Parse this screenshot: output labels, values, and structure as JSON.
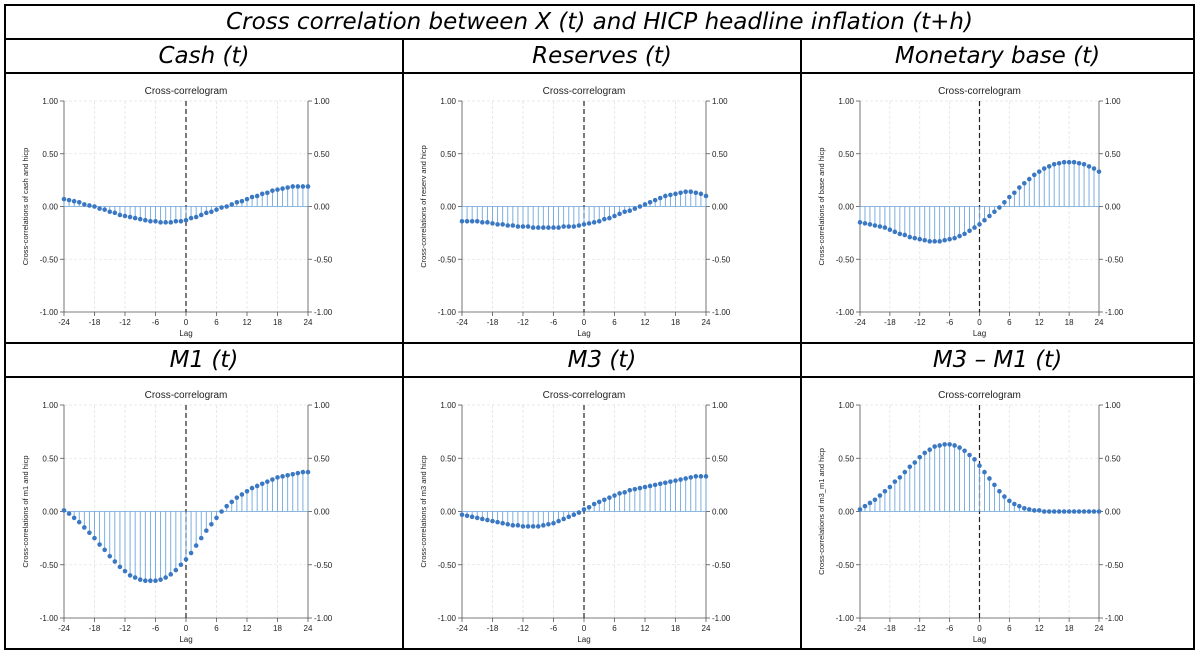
{
  "main_title": "Cross correlation between X (t) and HICP headline inflation (t+h)",
  "panels": [
    {
      "title": "Cash (t)"
    },
    {
      "title": "Reserves (t)"
    },
    {
      "title": "Monetary base (t)"
    },
    {
      "title": "M1 (t)"
    },
    {
      "title": "M3 (t)"
    },
    {
      "title": "M3 – M1 (t)"
    }
  ],
  "colors": {
    "marker": "#3a78c3",
    "stem": "#6fa6dc",
    "grid": "#e3e3e3",
    "axis": "#555555",
    "zero_line": "#222222"
  },
  "chart_data": [
    {
      "type": "scatter",
      "title": "Cross-correlogram",
      "xlabel": "Lag",
      "ylabel": "Cross-correlations of cash and hicp",
      "x_ticks": [
        "-24",
        "-18",
        "-12",
        "-6",
        "0",
        "6",
        "12",
        "18",
        "24"
      ],
      "y_ticks": [
        "-1.00",
        "-0.50",
        "0.00",
        "0.50",
        "1.00"
      ],
      "xlim": [
        -24,
        24
      ],
      "ylim": [
        -1,
        1
      ],
      "reference_line_x": 0,
      "x": [
        -24,
        -23,
        -22,
        -21,
        -20,
        -19,
        -18,
        -17,
        -16,
        -15,
        -14,
        -13,
        -12,
        -11,
        -10,
        -9,
        -8,
        -7,
        -6,
        -5,
        -4,
        -3,
        -2,
        -1,
        0,
        1,
        2,
        3,
        4,
        5,
        6,
        7,
        8,
        9,
        10,
        11,
        12,
        13,
        14,
        15,
        16,
        17,
        18,
        19,
        20,
        21,
        22,
        23,
        24
      ],
      "values": [
        0.07,
        0.06,
        0.05,
        0.04,
        0.02,
        0.01,
        0.0,
        -0.02,
        -0.03,
        -0.05,
        -0.06,
        -0.08,
        -0.09,
        -0.1,
        -0.11,
        -0.12,
        -0.13,
        -0.14,
        -0.14,
        -0.15,
        -0.15,
        -0.15,
        -0.14,
        -0.14,
        -0.13,
        -0.11,
        -0.1,
        -0.08,
        -0.06,
        -0.05,
        -0.03,
        -0.01,
        0.0,
        0.02,
        0.04,
        0.05,
        0.07,
        0.09,
        0.1,
        0.12,
        0.13,
        0.15,
        0.16,
        0.17,
        0.18,
        0.19,
        0.19,
        0.19,
        0.19
      ]
    },
    {
      "type": "scatter",
      "title": "Cross-correlogram",
      "xlabel": "Lag",
      "ylabel": "Cross-correlations of reserv and hicp",
      "x_ticks": [
        "-24",
        "-18",
        "-12",
        "-6",
        "0",
        "6",
        "12",
        "18",
        "24"
      ],
      "y_ticks": [
        "-1.00",
        "-0.50",
        "0.00",
        "0.50",
        "1.00"
      ],
      "xlim": [
        -24,
        24
      ],
      "ylim": [
        -1,
        1
      ],
      "reference_line_x": 0,
      "x": [
        -24,
        -23,
        -22,
        -21,
        -20,
        -19,
        -18,
        -17,
        -16,
        -15,
        -14,
        -13,
        -12,
        -11,
        -10,
        -9,
        -8,
        -7,
        -6,
        -5,
        -4,
        -3,
        -2,
        -1,
        0,
        1,
        2,
        3,
        4,
        5,
        6,
        7,
        8,
        9,
        10,
        11,
        12,
        13,
        14,
        15,
        16,
        17,
        18,
        19,
        20,
        21,
        22,
        23,
        24
      ],
      "values": [
        -0.14,
        -0.14,
        -0.14,
        -0.14,
        -0.15,
        -0.15,
        -0.16,
        -0.17,
        -0.17,
        -0.18,
        -0.18,
        -0.19,
        -0.19,
        -0.19,
        -0.2,
        -0.2,
        -0.2,
        -0.2,
        -0.2,
        -0.2,
        -0.19,
        -0.19,
        -0.19,
        -0.18,
        -0.17,
        -0.16,
        -0.15,
        -0.14,
        -0.12,
        -0.11,
        -0.09,
        -0.07,
        -0.05,
        -0.04,
        -0.02,
        0.0,
        0.02,
        0.04,
        0.06,
        0.08,
        0.1,
        0.11,
        0.12,
        0.13,
        0.14,
        0.14,
        0.13,
        0.12,
        0.1
      ]
    },
    {
      "type": "scatter",
      "title": "Cross-correlogram",
      "xlabel": "Lag",
      "ylabel": "Cross-correlations of base and hicp",
      "x_ticks": [
        "-24",
        "-18",
        "-12",
        "-6",
        "0",
        "6",
        "12",
        "18",
        "24"
      ],
      "y_ticks": [
        "-1.00",
        "-0.50",
        "0.00",
        "0.50",
        "1.00"
      ],
      "xlim": [
        -24,
        24
      ],
      "ylim": [
        -1,
        1
      ],
      "reference_line_x": 0,
      "x": [
        -24,
        -23,
        -22,
        -21,
        -20,
        -19,
        -18,
        -17,
        -16,
        -15,
        -14,
        -13,
        -12,
        -11,
        -10,
        -9,
        -8,
        -7,
        -6,
        -5,
        -4,
        -3,
        -2,
        -1,
        0,
        1,
        2,
        3,
        4,
        5,
        6,
        7,
        8,
        9,
        10,
        11,
        12,
        13,
        14,
        15,
        16,
        17,
        18,
        19,
        20,
        21,
        22,
        23,
        24
      ],
      "values": [
        -0.15,
        -0.16,
        -0.17,
        -0.18,
        -0.19,
        -0.2,
        -0.22,
        -0.24,
        -0.26,
        -0.27,
        -0.29,
        -0.3,
        -0.31,
        -0.32,
        -0.33,
        -0.33,
        -0.33,
        -0.32,
        -0.31,
        -0.3,
        -0.28,
        -0.26,
        -0.23,
        -0.2,
        -0.17,
        -0.13,
        -0.09,
        -0.05,
        -0.01,
        0.04,
        0.09,
        0.13,
        0.18,
        0.22,
        0.26,
        0.3,
        0.33,
        0.36,
        0.38,
        0.4,
        0.41,
        0.42,
        0.42,
        0.42,
        0.41,
        0.4,
        0.38,
        0.36,
        0.33
      ]
    },
    {
      "type": "scatter",
      "title": "Cross-correlogram",
      "xlabel": "Lag",
      "ylabel": "Cross-correlations of m1 and hicp",
      "x_ticks": [
        "-24",
        "-18",
        "-12",
        "-6",
        "0",
        "6",
        "12",
        "18",
        "24"
      ],
      "y_ticks": [
        "-1.00",
        "-0.50",
        "0.00",
        "0.50",
        "1.00"
      ],
      "xlim": [
        -24,
        24
      ],
      "ylim": [
        -1,
        1
      ],
      "reference_line_x": 0,
      "x": [
        -24,
        -23,
        -22,
        -21,
        -20,
        -19,
        -18,
        -17,
        -16,
        -15,
        -14,
        -13,
        -12,
        -11,
        -10,
        -9,
        -8,
        -7,
        -6,
        -5,
        -4,
        -3,
        -2,
        -1,
        0,
        1,
        2,
        3,
        4,
        5,
        6,
        7,
        8,
        9,
        10,
        11,
        12,
        13,
        14,
        15,
        16,
        17,
        18,
        19,
        20,
        21,
        22,
        23,
        24
      ],
      "values": [
        0.01,
        -0.02,
        -0.06,
        -0.1,
        -0.15,
        -0.2,
        -0.25,
        -0.31,
        -0.36,
        -0.42,
        -0.47,
        -0.52,
        -0.56,
        -0.6,
        -0.62,
        -0.64,
        -0.65,
        -0.65,
        -0.65,
        -0.64,
        -0.62,
        -0.59,
        -0.55,
        -0.5,
        -0.45,
        -0.39,
        -0.32,
        -0.25,
        -0.18,
        -0.12,
        -0.06,
        0.0,
        0.05,
        0.09,
        0.13,
        0.16,
        0.19,
        0.22,
        0.24,
        0.26,
        0.28,
        0.3,
        0.32,
        0.33,
        0.34,
        0.35,
        0.36,
        0.37,
        0.37
      ]
    },
    {
      "type": "scatter",
      "title": "Cross-correlogram",
      "xlabel": "Lag",
      "ylabel": "Cross-correlations of m3 and hicp",
      "x_ticks": [
        "-24",
        "-18",
        "-12",
        "-6",
        "0",
        "6",
        "12",
        "18",
        "24"
      ],
      "y_ticks": [
        "-1.00",
        "-0.50",
        "0.00",
        "0.50",
        "1.00"
      ],
      "xlim": [
        -24,
        24
      ],
      "ylim": [
        -1,
        1
      ],
      "reference_line_x": 0,
      "x": [
        -24,
        -23,
        -22,
        -21,
        -20,
        -19,
        -18,
        -17,
        -16,
        -15,
        -14,
        -13,
        -12,
        -11,
        -10,
        -9,
        -8,
        -7,
        -6,
        -5,
        -4,
        -3,
        -2,
        -1,
        0,
        1,
        2,
        3,
        4,
        5,
        6,
        7,
        8,
        9,
        10,
        11,
        12,
        13,
        14,
        15,
        16,
        17,
        18,
        19,
        20,
        21,
        22,
        23,
        24
      ],
      "values": [
        -0.03,
        -0.04,
        -0.05,
        -0.06,
        -0.07,
        -0.08,
        -0.09,
        -0.1,
        -0.11,
        -0.12,
        -0.13,
        -0.13,
        -0.14,
        -0.14,
        -0.14,
        -0.14,
        -0.13,
        -0.12,
        -0.11,
        -0.09,
        -0.07,
        -0.05,
        -0.03,
        -0.01,
        0.02,
        0.04,
        0.07,
        0.09,
        0.11,
        0.13,
        0.15,
        0.17,
        0.18,
        0.2,
        0.21,
        0.22,
        0.23,
        0.24,
        0.25,
        0.26,
        0.27,
        0.28,
        0.29,
        0.3,
        0.31,
        0.32,
        0.33,
        0.33,
        0.33
      ]
    },
    {
      "type": "scatter",
      "title": "Cross-correlogram",
      "xlabel": "Lag",
      "ylabel": "Cross-correlations of m3_m1 and hicp",
      "x_ticks": [
        "-24",
        "-18",
        "-12",
        "-6",
        "0",
        "6",
        "12",
        "18",
        "24"
      ],
      "y_ticks": [
        "-1.00",
        "-0.50",
        "0.00",
        "0.50",
        "1.00"
      ],
      "xlim": [
        -24,
        24
      ],
      "ylim": [
        -1,
        1
      ],
      "reference_line_x": 0,
      "x": [
        -24,
        -23,
        -22,
        -21,
        -20,
        -19,
        -18,
        -17,
        -16,
        -15,
        -14,
        -13,
        -12,
        -11,
        -10,
        -9,
        -8,
        -7,
        -6,
        -5,
        -4,
        -3,
        -2,
        -1,
        0,
        1,
        2,
        3,
        4,
        5,
        6,
        7,
        8,
        9,
        10,
        11,
        12,
        13,
        14,
        15,
        16,
        17,
        18,
        19,
        20,
        21,
        22,
        23,
        24
      ],
      "values": [
        0.02,
        0.05,
        0.08,
        0.11,
        0.15,
        0.19,
        0.23,
        0.28,
        0.32,
        0.37,
        0.42,
        0.46,
        0.51,
        0.55,
        0.58,
        0.61,
        0.62,
        0.63,
        0.63,
        0.62,
        0.6,
        0.57,
        0.53,
        0.49,
        0.43,
        0.37,
        0.31,
        0.25,
        0.19,
        0.14,
        0.1,
        0.07,
        0.05,
        0.03,
        0.02,
        0.01,
        0.01,
        0.0,
        0.0,
        0.0,
        0.0,
        0.0,
        0.0,
        0.0,
        0.0,
        0.0,
        0.0,
        0.0,
        0.0
      ]
    }
  ]
}
